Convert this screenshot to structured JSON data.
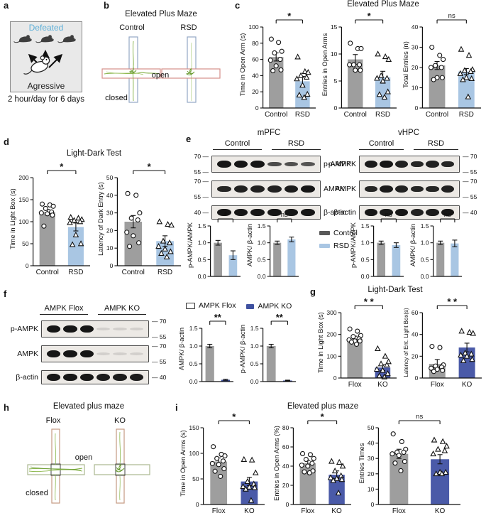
{
  "figure": {
    "panels": {
      "a": "a",
      "b": "b",
      "c": "c",
      "d": "d",
      "e": "e",
      "f": "f",
      "g": "g",
      "h": "h",
      "i": "i"
    },
    "panel_a": {
      "defeated": "Defeated",
      "aggressive": "Agressive",
      "caption": "2 hour/day for 6 days"
    },
    "panel_b": {
      "title": "Elevated Plus Maze",
      "group1": "Control",
      "group2": "RSD",
      "open": "open",
      "closed": "closed"
    },
    "panel_c": {
      "title": "Elevated Plus Maze"
    },
    "panel_d": {
      "title": "Light-Dark Test"
    },
    "panel_e": {
      "legend": [
        {
          "label": "Control",
          "color": "#595959"
        },
        {
          "label": "RSD",
          "color": "#a9c6e3"
        }
      ],
      "blot_left": {
        "region": "mPFC",
        "groups": [
          "Control",
          "RSD"
        ],
        "rows": [
          {
            "label": "p-AMPK",
            "mw": [
              "70",
              "55"
            ],
            "lanes": [
              1,
              1,
              1,
              0.5,
              0.45,
              0.42
            ]
          },
          {
            "label": "AMPK",
            "mw": [
              "70",
              "55"
            ],
            "lanes": [
              0.85,
              0.9,
              0.9,
              0.9,
              0.95,
              1
            ]
          },
          {
            "label": "β-actin",
            "mw": [
              "40"
            ],
            "lanes": [
              1,
              1,
              1,
              1,
              1,
              1
            ]
          }
        ]
      },
      "blot_right": {
        "region": "vHPC",
        "groups": [
          "Control",
          "RSD"
        ],
        "rows": [
          {
            "label": "p-AMPK",
            "mw": [
              "70",
              "55"
            ],
            "lanes": [
              0.95,
              1,
              0.9,
              0.85,
              0.9,
              0.85
            ]
          },
          {
            "label": "AMPK",
            "mw": [
              "70",
              "55"
            ],
            "lanes": [
              0.85,
              0.95,
              0.9,
              0.85,
              0.85,
              0.9
            ]
          },
          {
            "label": "β-actin",
            "mw": [
              "40"
            ],
            "lanes": [
              1,
              0.95,
              1,
              0.9,
              0.95,
              1
            ]
          }
        ]
      }
    },
    "panel_f": {
      "legend": [
        {
          "label": "AMPK Flox",
          "color": "#ffffff",
          "border": "#333333"
        },
        {
          "label": "AMPK KO",
          "color": "#3f51a0"
        }
      ],
      "blot": {
        "groups": [
          "AMPK Flox",
          "AMPK KO"
        ],
        "rows": [
          {
            "label": "p-AMPK",
            "mw": [
              "70",
              "55"
            ],
            "lanes": [
              1,
              1,
              1,
              0.05,
              0.05,
              0.05
            ]
          },
          {
            "label": "AMPK",
            "mw": [
              "70",
              "55"
            ],
            "lanes": [
              1,
              1,
              1,
              0.05,
              0.05,
              0.05
            ]
          },
          {
            "label": "β-actin",
            "mw": [
              "40"
            ],
            "lanes": [
              1,
              1,
              1,
              0.95,
              0.95,
              0.95
            ]
          }
        ]
      }
    },
    "panel_g": {
      "title": "Light-Dark Test"
    },
    "panel_h": {
      "title": "Elevated plus maze",
      "group1": "Flox",
      "group2": "KO",
      "open": "open",
      "closed": "closed"
    },
    "panel_i": {
      "title": "Elevated plus maze"
    }
  },
  "colors": {
    "control_bar": "#9e9e9e",
    "rsd_bar": "#a9c6e3",
    "ko_bar": "#4a5aa8",
    "defeated_text": "#5fb0d8"
  },
  "chart_data": [
    {
      "id": "c1",
      "type": "bar",
      "title": "",
      "ylabel": "Time in Open Arm (s)",
      "ylim": [
        0,
        100
      ],
      "yticks": [
        "0",
        "20",
        "40",
        "60",
        "80",
        "100"
      ],
      "categories": [
        "Control",
        "RSD"
      ],
      "sig": "*",
      "series": [
        {
          "name": "Control",
          "mean": 63,
          "sem": 5,
          "color": "#9e9e9e",
          "marker": "circle",
          "points": [
            85,
            81,
            70,
            68,
            60,
            59,
            52,
            47,
            46
          ]
        },
        {
          "name": "RSD",
          "mean": 33,
          "sem": 6,
          "color": "#a9c6e3",
          "marker": "triangle",
          "points": [
            63,
            45,
            44,
            40,
            38,
            36,
            28,
            17,
            16,
            13
          ]
        }
      ]
    },
    {
      "id": "c2",
      "type": "bar",
      "title": "",
      "ylabel": "Entries in Open Arms",
      "ylim": [
        0,
        15
      ],
      "yticks": [
        "0",
        "5",
        "10",
        "15"
      ],
      "categories": [
        "Control",
        "RSD"
      ],
      "sig": "*",
      "series": [
        {
          "name": "Control",
          "mean": 9,
          "sem": 0.9,
          "color": "#9e9e9e",
          "marker": "circle",
          "points": [
            12,
            11,
            11,
            8,
            8,
            8,
            7,
            7
          ]
        },
        {
          "name": "RSD",
          "mean": 5.7,
          "sem": 1.1,
          "color": "#a9c6e3",
          "marker": "triangle",
          "points": [
            10,
            9.5,
            9,
            6,
            5.5,
            5.5,
            5,
            3,
            2.5,
            2
          ]
        }
      ]
    },
    {
      "id": "c3",
      "type": "bar",
      "title": "",
      "ylabel": "Total Entries (n)",
      "ylim": [
        0,
        40
      ],
      "yticks": [
        "0",
        "10",
        "20",
        "30",
        "40"
      ],
      "categories": [
        "Control",
        "RSD"
      ],
      "sig": "ns",
      "series": [
        {
          "name": "Control",
          "mean": 21,
          "sem": 2,
          "color": "#9e9e9e",
          "marker": "circle",
          "points": [
            30,
            26,
            24,
            21,
            20,
            20,
            15,
            15,
            14
          ]
        },
        {
          "name": "RSD",
          "mean": 18,
          "sem": 1.5,
          "color": "#a9c6e3",
          "marker": "triangle",
          "points": [
            29,
            26,
            19,
            18.5,
            18,
            17,
            15,
            14.5,
            14,
            5.5
          ]
        }
      ]
    },
    {
      "id": "d1",
      "type": "bar",
      "title": "",
      "ylabel": "Time in Light Box (s)",
      "ylim": [
        0,
        200
      ],
      "yticks": [
        "0",
        "50",
        "100",
        "150",
        "200"
      ],
      "categories": [
        "Control",
        "RSD"
      ],
      "sig": "*",
      "series": [
        {
          "name": "Control",
          "mean": 122,
          "sem": 6,
          "color": "#9e9e9e",
          "marker": "circle",
          "points": [
            140,
            138,
            135,
            130,
            122,
            120,
            118,
            115,
            90
          ]
        },
        {
          "name": "RSD",
          "mean": 88,
          "sem": 9,
          "color": "#a9c6e3",
          "marker": "triangle",
          "points": [
            110,
            108,
            105,
            103,
            100,
            98,
            70,
            50,
            48
          ]
        }
      ]
    },
    {
      "id": "d2",
      "type": "bar",
      "title": "",
      "ylabel": "Latency of Dark Entry (s)",
      "ylim": [
        0,
        50
      ],
      "yticks": [
        "0",
        "10",
        "20",
        "30",
        "40",
        "50"
      ],
      "categories": [
        "Control",
        "RSD"
      ],
      "sig": "*",
      "series": [
        {
          "name": "Control",
          "mean": 25,
          "sem": 3.5,
          "color": "#9e9e9e",
          "marker": "circle",
          "points": [
            41,
            40,
            30,
            27,
            26,
            19,
            17,
            13,
            11
          ]
        },
        {
          "name": "RSD",
          "mean": 14,
          "sem": 3,
          "color": "#a9c6e3",
          "marker": "triangle",
          "points": [
            25,
            23.5,
            23,
            14,
            13,
            11,
            9.5,
            8,
            7,
            5
          ]
        }
      ]
    },
    {
      "id": "e1",
      "type": "bar",
      "title": "",
      "ylabel": "p-AMPK/AMPK",
      "ylim": [
        0,
        1.5
      ],
      "yticks": [
        "0.0",
        "0.5",
        "1.0",
        "1.5"
      ],
      "categories": [],
      "sig": "*",
      "series": [
        {
          "name": "Control",
          "mean": 1.0,
          "sem": 0.07,
          "color": "#9e9e9e",
          "marker": "none",
          "points": []
        },
        {
          "name": "RSD",
          "mean": 0.63,
          "sem": 0.13,
          "color": "#a9c6e3",
          "marker": "none",
          "points": []
        }
      ]
    },
    {
      "id": "e2",
      "type": "bar",
      "title": "",
      "ylabel": "AMPK/ β-actin",
      "ylim": [
        0,
        1.5
      ],
      "yticks": [
        "0.0",
        "0.5",
        "1.0",
        "1.5"
      ],
      "categories": [],
      "sig": "ns",
      "series": [
        {
          "name": "Control",
          "mean": 1.0,
          "sem": 0.05,
          "color": "#9e9e9e",
          "marker": "none",
          "points": []
        },
        {
          "name": "RSD",
          "mean": 1.1,
          "sem": 0.07,
          "color": "#a9c6e3",
          "marker": "none",
          "points": []
        }
      ]
    },
    {
      "id": "e3",
      "type": "bar",
      "title": "",
      "ylabel": "p-AMPK/AMPK",
      "ylim": [
        0,
        1.5
      ],
      "yticks": [
        "0.0",
        "0.5",
        "1.0",
        "1.5"
      ],
      "categories": [],
      "sig": "ns",
      "series": [
        {
          "name": "Control",
          "mean": 1.0,
          "sem": 0.05,
          "color": "#9e9e9e",
          "marker": "none",
          "points": []
        },
        {
          "name": "RSD",
          "mean": 0.93,
          "sem": 0.07,
          "color": "#a9c6e3",
          "marker": "none",
          "points": []
        }
      ]
    },
    {
      "id": "e4",
      "type": "bar",
      "title": "",
      "ylabel": "AMPK/ β-actin",
      "ylim": [
        0,
        1.5
      ],
      "yticks": [
        "0.0",
        "0.5",
        "1.0",
        "1.5"
      ],
      "categories": [],
      "sig": "ns",
      "series": [
        {
          "name": "Control",
          "mean": 1.0,
          "sem": 0.05,
          "color": "#9e9e9e",
          "marker": "none",
          "points": []
        },
        {
          "name": "RSD",
          "mean": 0.98,
          "sem": 0.1,
          "color": "#a9c6e3",
          "marker": "none",
          "points": []
        }
      ]
    },
    {
      "id": "f1",
      "type": "bar",
      "title": "",
      "ylabel": "AMPK/ β-actin",
      "ylim": [
        0,
        1.5
      ],
      "yticks": [
        "0.0",
        "0.5",
        "1.0",
        "1.5"
      ],
      "categories": [],
      "sig": "**",
      "series": [
        {
          "name": "AMPK Flox",
          "mean": 1.0,
          "sem": 0.05,
          "color": "#9e9e9e",
          "marker": "none",
          "points": []
        },
        {
          "name": "AMPK KO",
          "mean": 0.05,
          "sem": 0.015,
          "color": "#3f51a0",
          "marker": "none",
          "points": []
        }
      ]
    },
    {
      "id": "f2",
      "type": "bar",
      "title": "",
      "ylabel": "p-AMPK/ β-actin",
      "ylim": [
        0,
        1.5
      ],
      "yticks": [
        "0.0",
        "0.5",
        "1.0",
        "1.5"
      ],
      "categories": [],
      "sig": "**",
      "series": [
        {
          "name": "AMPK Flox",
          "mean": 1.0,
          "sem": 0.05,
          "color": "#9e9e9e",
          "marker": "none",
          "points": []
        },
        {
          "name": "AMPK KO",
          "mean": 0.03,
          "sem": 0.01,
          "color": "#3f51a0",
          "marker": "none",
          "points": []
        }
      ]
    },
    {
      "id": "g1",
      "type": "bar",
      "title": "",
      "ylabel": "Time in Light Box (s)",
      "ylim": [
        0,
        300
      ],
      "yticks": [
        "0",
        "100",
        "200",
        "300"
      ],
      "categories": [
        "Flox",
        "KO"
      ],
      "sig": "* *",
      "series": [
        {
          "name": "Flox",
          "mean": 180,
          "sem": 12,
          "color": "#9e9e9e",
          "marker": "circle",
          "points": [
            225,
            215,
            195,
            190,
            180,
            175,
            170,
            170,
            165,
            155
          ]
        },
        {
          "name": "KO",
          "mean": 48,
          "sem": 14,
          "color": "#4a5aa8",
          "marker": "triangle",
          "points": [
            135,
            100,
            75,
            65,
            60,
            40,
            35,
            20,
            10,
            5
          ]
        }
      ]
    },
    {
      "id": "g2",
      "type": "bar",
      "title": "",
      "ylabel": "Latency of Ent. Light Box(s)",
      "ylim": [
        0,
        60
      ],
      "yticks": [
        "0",
        "20",
        "40",
        "60"
      ],
      "categories": [
        "Flox",
        "KO"
      ],
      "sig": "* *",
      "series": [
        {
          "name": "Flox",
          "mean": 13,
          "sem": 4,
          "color": "#9e9e9e",
          "marker": "circle",
          "points": [
            29,
            28,
            12,
            11,
            10,
            9,
            8,
            7,
            6
          ]
        },
        {
          "name": "KO",
          "mean": 28,
          "sem": 4,
          "color": "#4a5aa8",
          "marker": "triangle",
          "points": [
            43,
            42,
            41,
            23,
            22,
            21,
            20,
            17,
            16
          ]
        }
      ]
    },
    {
      "id": "i1",
      "type": "bar",
      "title": "",
      "ylabel": "Time in Open Arms (s)",
      "ylim": [
        0,
        150
      ],
      "yticks": [
        "0",
        "50",
        "100",
        "150"
      ],
      "categories": [
        "Flox",
        "KO"
      ],
      "sig": "*",
      "series": [
        {
          "name": "Flox",
          "mean": 84,
          "sem": 7,
          "color": "#9e9e9e",
          "marker": "circle",
          "points": [
            113,
            98,
            95,
            90,
            85,
            80,
            78,
            70,
            65,
            55
          ]
        },
        {
          "name": "KO",
          "mean": 45,
          "sem": 8,
          "color": "#4a5aa8",
          "marker": "triangle",
          "points": [
            88,
            87,
            62,
            45,
            40,
            35,
            34,
            33,
            30,
            8
          ]
        }
      ]
    },
    {
      "id": "i2",
      "type": "bar",
      "title": "",
      "ylabel": "Entries in Open Arms (%)",
      "ylim": [
        0,
        80
      ],
      "yticks": [
        "0",
        "20",
        "40",
        "60",
        "80"
      ],
      "categories": [
        "Flox",
        "KO"
      ],
      "sig": "*",
      "series": [
        {
          "name": "Flox",
          "mean": 43,
          "sem": 3,
          "color": "#9e9e9e",
          "marker": "circle",
          "points": [
            53,
            52,
            48,
            47,
            43,
            41,
            40,
            35,
            34,
            33
          ]
        },
        {
          "name": "KO",
          "mean": 31,
          "sem": 4,
          "color": "#4a5aa8",
          "marker": "triangle",
          "points": [
            45,
            44,
            40,
            35,
            30,
            28,
            27,
            26,
            25,
            12
          ]
        }
      ]
    },
    {
      "id": "i3",
      "type": "bar",
      "title": "",
      "ylabel": "Entries Times",
      "ylim": [
        0,
        50
      ],
      "yticks": [
        "0",
        "10",
        "20",
        "30",
        "40",
        "50"
      ],
      "categories": [
        "Flox",
        "KO"
      ],
      "sig": "ns",
      "series": [
        {
          "name": "Flox",
          "mean": 33,
          "sem": 3,
          "color": "#9e9e9e",
          "marker": "circle",
          "points": [
            46,
            41,
            36,
            34,
            34,
            33,
            32,
            28,
            27,
            22
          ]
        },
        {
          "name": "KO",
          "mean": 29.5,
          "sem": 3,
          "color": "#4a5aa8",
          "marker": "triangle",
          "points": [
            42,
            41,
            38,
            36,
            35,
            33,
            21,
            21,
            20,
            20
          ]
        }
      ]
    }
  ]
}
